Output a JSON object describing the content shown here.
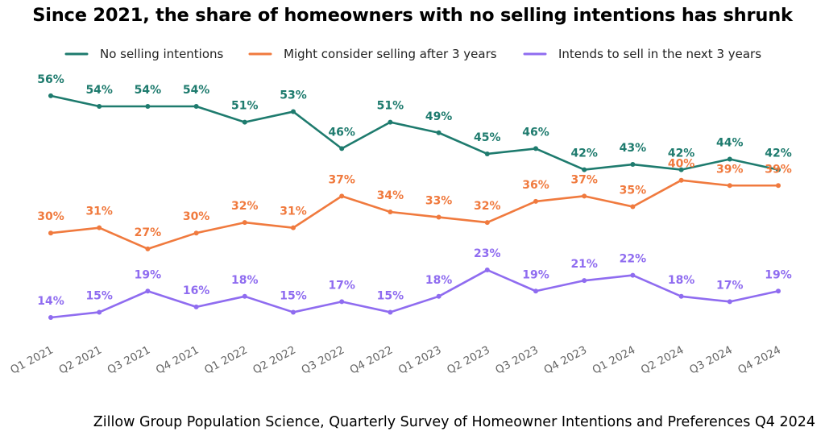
{
  "title": "Since 2021, the share of homeowners with no selling intentions has shrunk",
  "source": "Zillow Group Population Science, Quarterly Survey of Homeowner Intentions and Preferences Q4 2024",
  "chart_data": {
    "type": "line",
    "title": "Since 2021, the share of homeowners with no selling intentions has shrunk",
    "categories": [
      "Q1 2021",
      "Q2 2021",
      "Q3 2021",
      "Q4 2021",
      "Q1 2022",
      "Q2 2022",
      "Q3 2022",
      "Q4 2022",
      "Q1 2023",
      "Q2 2023",
      "Q3 2023",
      "Q4 2023",
      "Q1 2024",
      "Q2 2024",
      "Q3 2024",
      "Q4 2024"
    ],
    "value_suffix": "%",
    "ylim": [
      10,
      60
    ],
    "grid": false,
    "legend": "top",
    "series": [
      {
        "name": "No selling intentions",
        "color": "#1e7b6e",
        "values": [
          56,
          54,
          54,
          54,
          51,
          53,
          46,
          51,
          49,
          45,
          46,
          42,
          43,
          42,
          44,
          42
        ]
      },
      {
        "name": "Might consider selling after 3 years",
        "color": "#f07a3e",
        "values": [
          30,
          31,
          27,
          30,
          32,
          31,
          37,
          34,
          33,
          32,
          36,
          37,
          35,
          40,
          39,
          39
        ]
      },
      {
        "name": "Intends to sell in the next 3 years",
        "color": "#8f6cf0",
        "values": [
          14,
          15,
          19,
          16,
          18,
          15,
          17,
          15,
          18,
          23,
          19,
          21,
          22,
          18,
          17,
          19
        ]
      }
    ]
  }
}
